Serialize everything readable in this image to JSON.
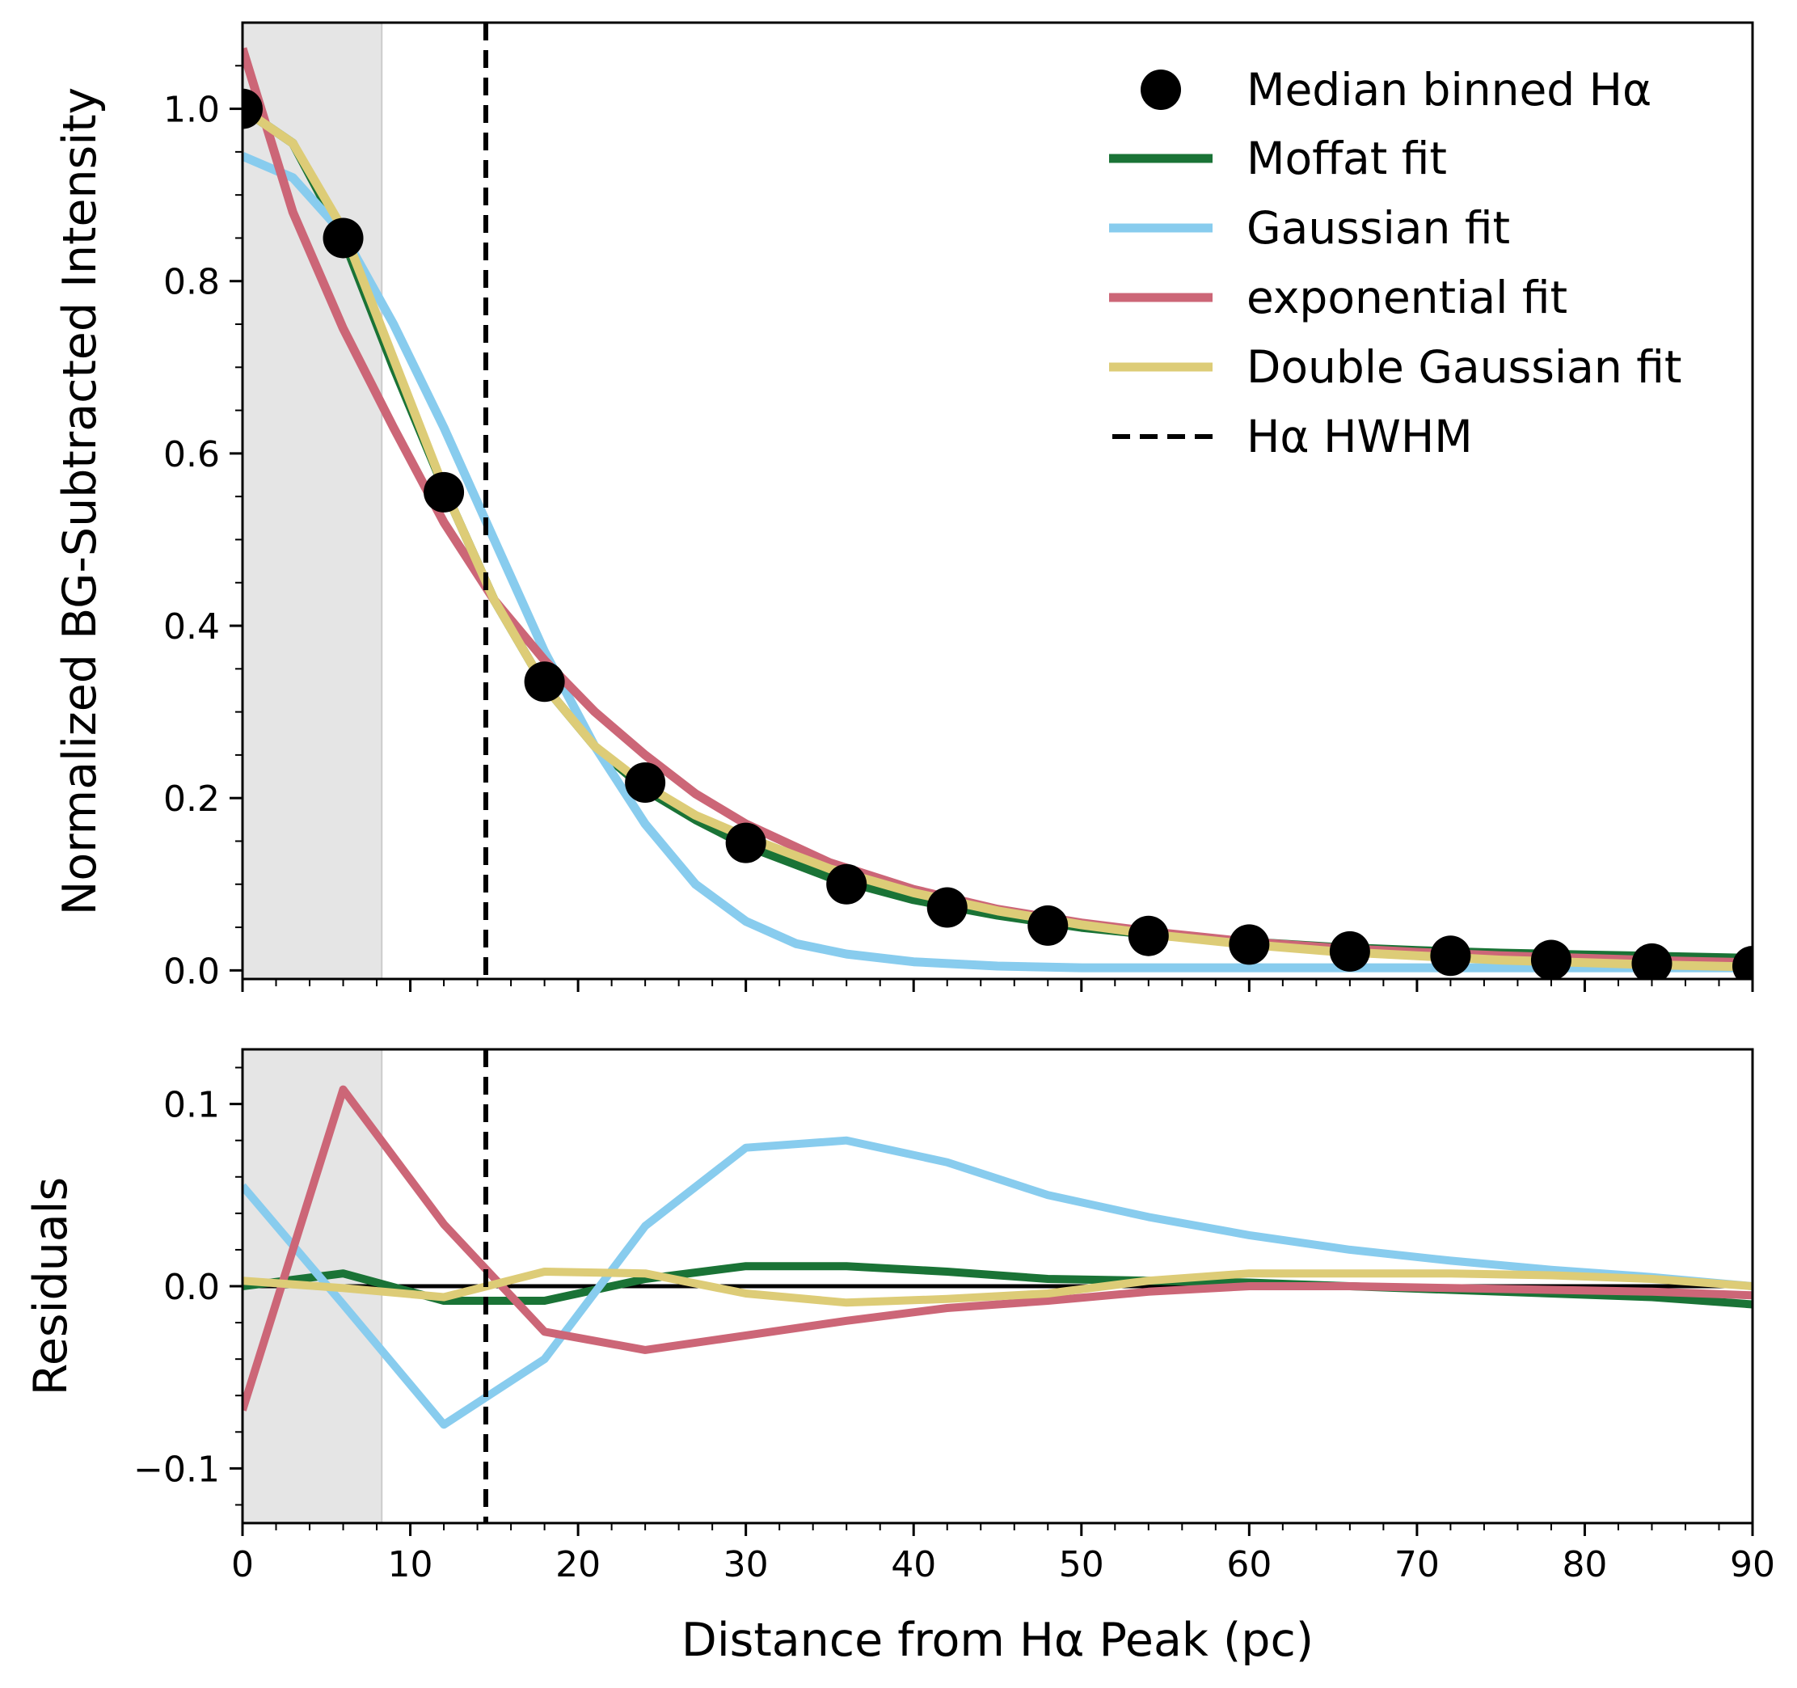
{
  "chart_data": [
    {
      "type": "line",
      "panel": "main",
      "xlabel": "Distance from Hα Peak (pc)",
      "ylabel": "Normalized BG-Subtracted Intensity",
      "xlim": [
        0,
        90
      ],
      "ylim": [
        -0.01,
        1.1
      ],
      "yticks": [
        "0.0",
        "0.2",
        "0.4",
        "0.6",
        "0.8",
        "1.0"
      ],
      "ytick_values": [
        0.0,
        0.2,
        0.4,
        0.6,
        0.8,
        1.0
      ],
      "shaded_region": [
        0,
        8.3
      ],
      "hwhm": 14.5,
      "points": {
        "name": "Median binned Hα",
        "x": [
          0,
          6,
          12,
          18,
          24,
          30,
          36,
          42,
          48,
          54,
          60,
          66,
          72,
          78,
          84,
          90
        ],
        "y": [
          1.0,
          0.85,
          0.555,
          0.335,
          0.218,
          0.148,
          0.1,
          0.073,
          0.052,
          0.04,
          0.03,
          0.022,
          0.017,
          0.012,
          0.008,
          0.005
        ]
      },
      "series": [
        {
          "name": "Moffat fit",
          "color": "#1a7336",
          "x": [
            0,
            3,
            6,
            9,
            12,
            15,
            18,
            21,
            24,
            27,
            30,
            35,
            40,
            45,
            50,
            55,
            60,
            65,
            70,
            75,
            80,
            85,
            90
          ],
          "y": [
            1.0,
            0.96,
            0.85,
            0.7,
            0.56,
            0.43,
            0.33,
            0.26,
            0.21,
            0.175,
            0.145,
            0.108,
            0.082,
            0.064,
            0.05,
            0.04,
            0.033,
            0.027,
            0.023,
            0.02,
            0.018,
            0.016,
            0.014
          ]
        },
        {
          "name": "Gaussian fit",
          "color": "#88ccee",
          "x": [
            0,
            3,
            6,
            9,
            12,
            15,
            18,
            21,
            24,
            27,
            30,
            33,
            36,
            40,
            45,
            50,
            55,
            60,
            70,
            80,
            90
          ],
          "y": [
            0.945,
            0.92,
            0.855,
            0.75,
            0.63,
            0.5,
            0.37,
            0.26,
            0.17,
            0.1,
            0.057,
            0.031,
            0.019,
            0.01,
            0.005,
            0.003,
            0.003,
            0.003,
            0.003,
            0.003,
            0.003
          ]
        },
        {
          "name": "exponential fit",
          "color": "#cc6677",
          "x": [
            0,
            3,
            6,
            9,
            12,
            15,
            18,
            21,
            24,
            27,
            30,
            35,
            40,
            45,
            50,
            55,
            60,
            65,
            70,
            75,
            80,
            85,
            90
          ],
          "y": [
            1.07,
            0.88,
            0.745,
            0.63,
            0.52,
            0.43,
            0.36,
            0.3,
            0.25,
            0.205,
            0.17,
            0.125,
            0.094,
            0.071,
            0.055,
            0.043,
            0.033,
            0.026,
            0.021,
            0.017,
            0.014,
            0.011,
            0.009
          ]
        },
        {
          "name": "Double Gaussian fit",
          "color": "#ddcc77",
          "x": [
            0,
            3,
            6,
            9,
            12,
            15,
            18,
            21,
            24,
            27,
            30,
            35,
            40,
            45,
            50,
            55,
            60,
            65,
            70,
            75,
            80,
            85,
            90
          ],
          "y": [
            1.0,
            0.96,
            0.86,
            0.71,
            0.56,
            0.43,
            0.33,
            0.26,
            0.215,
            0.18,
            0.155,
            0.118,
            0.09,
            0.069,
            0.053,
            0.04,
            0.03,
            0.022,
            0.017,
            0.012,
            0.009,
            0.006,
            0.004
          ]
        }
      ],
      "legend": {
        "location": "upper right",
        "entries": [
          {
            "label": "Median binned Hα",
            "style": "marker",
            "color": "#000000"
          },
          {
            "label": "Moffat fit",
            "style": "line",
            "color": "#1a7336"
          },
          {
            "label": "Gaussian fit",
            "style": "line",
            "color": "#88ccee"
          },
          {
            "label": "exponential fit",
            "style": "line",
            "color": "#cc6677"
          },
          {
            "label": "Double Gaussian fit",
            "style": "line",
            "color": "#ddcc77"
          },
          {
            "label": "Hα HWHM",
            "style": "dashed",
            "color": "#000000"
          }
        ]
      }
    },
    {
      "type": "line",
      "panel": "residuals",
      "xlabel": "Distance from Hα Peak (pc)",
      "ylabel": "Residuals",
      "xlim": [
        0,
        90
      ],
      "ylim": [
        -0.13,
        0.13
      ],
      "xticks": [
        "0",
        "10",
        "20",
        "30",
        "40",
        "50",
        "60",
        "70",
        "80",
        "90"
      ],
      "xtick_values": [
        0,
        10,
        20,
        30,
        40,
        50,
        60,
        70,
        80,
        90
      ],
      "yticks": [
        "−0.1",
        "0.0",
        "0.1"
      ],
      "ytick_values": [
        -0.1,
        0.0,
        0.1
      ],
      "zero_line": 0,
      "series": [
        {
          "name": "Moffat fit",
          "color": "#1a7336",
          "x": [
            0,
            6,
            12,
            18,
            24,
            30,
            36,
            42,
            48,
            54,
            60,
            66,
            72,
            78,
            84,
            90
          ],
          "y": [
            0.0,
            0.007,
            -0.008,
            -0.008,
            0.004,
            0.011,
            0.011,
            0.008,
            0.004,
            0.003,
            0.002,
            0.0,
            -0.002,
            -0.004,
            -0.006,
            -0.01
          ]
        },
        {
          "name": "Gaussian fit",
          "color": "#88ccee",
          "x": [
            0,
            6,
            12,
            18,
            24,
            30,
            36,
            42,
            48,
            54,
            60,
            66,
            72,
            78,
            84,
            90
          ],
          "y": [
            0.055,
            -0.01,
            -0.076,
            -0.04,
            0.033,
            0.076,
            0.08,
            0.068,
            0.05,
            0.038,
            0.028,
            0.02,
            0.014,
            0.009,
            0.005,
            0.0
          ]
        },
        {
          "name": "exponential fit",
          "color": "#cc6677",
          "x": [
            0,
            6,
            12,
            18,
            24,
            30,
            36,
            42,
            48,
            54,
            60,
            66,
            72,
            78,
            84,
            90
          ],
          "y": [
            -0.068,
            0.108,
            0.034,
            -0.025,
            -0.035,
            -0.027,
            -0.019,
            -0.012,
            -0.008,
            -0.003,
            0.0,
            0.0,
            -0.001,
            -0.002,
            -0.003,
            -0.005
          ]
        },
        {
          "name": "Double Gaussian fit",
          "color": "#ddcc77",
          "x": [
            0,
            6,
            12,
            18,
            24,
            30,
            36,
            42,
            48,
            54,
            60,
            66,
            72,
            78,
            84,
            90
          ],
          "y": [
            0.003,
            -0.001,
            -0.006,
            0.008,
            0.007,
            -0.004,
            -0.009,
            -0.007,
            -0.004,
            0.003,
            0.007,
            0.007,
            0.007,
            0.006,
            0.004,
            0.0
          ]
        }
      ]
    }
  ]
}
